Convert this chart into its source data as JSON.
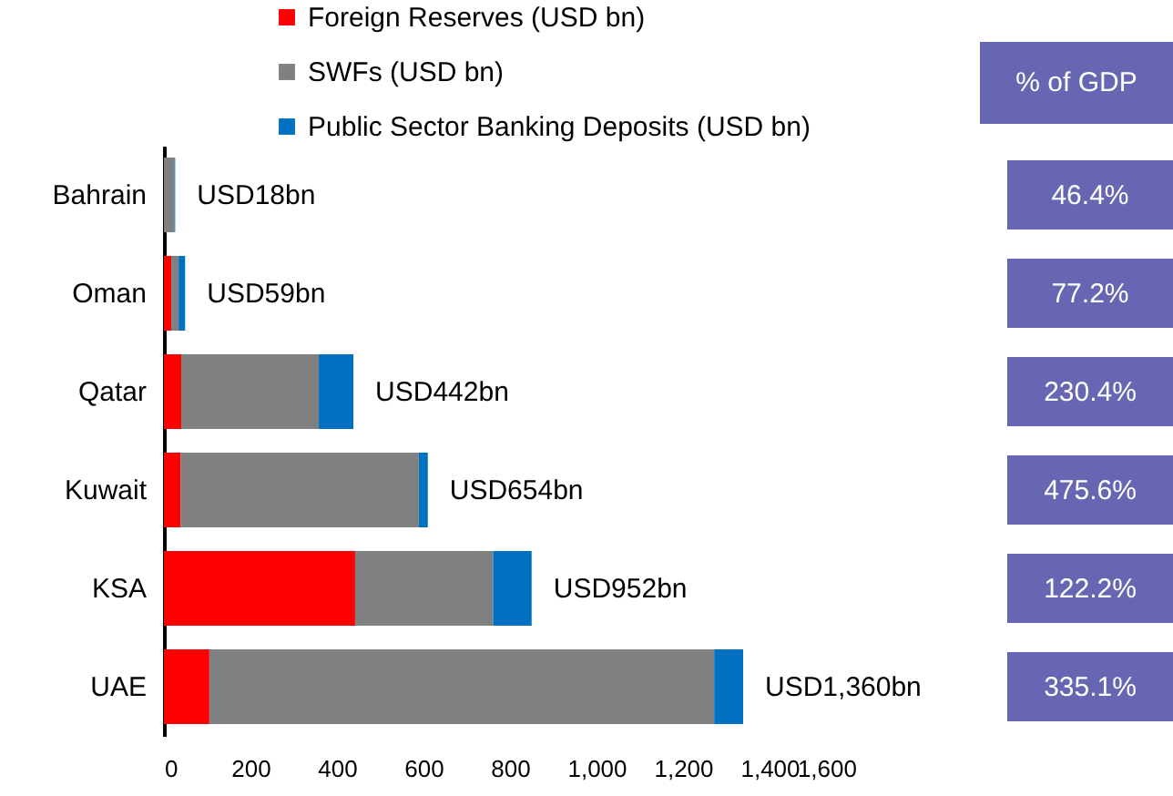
{
  "chart_data": {
    "type": "bar",
    "orientation": "horizontal",
    "stacked": true,
    "categories": [
      "Bahrain",
      "Oman",
      "Qatar",
      "Kuwait",
      "KSA",
      "UAE"
    ],
    "series": [
      {
        "name": "Foreign Reserves (USD bn)",
        "color": "#ff0000",
        "values": [
          0,
          17,
          40,
          39,
          442,
          105
        ]
      },
      {
        "name": "SWFs (USD bn)",
        "color": "#808080",
        "values": [
          24,
          17,
          318,
          550,
          319,
          1167
        ]
      },
      {
        "name": "Public Sector Banking Deposits (USD bn)",
        "color": "#0070c0",
        "values": [
          2,
          15,
          80,
          21,
          89,
          67
        ]
      }
    ],
    "xlim": [
      0,
      1600
    ],
    "xticks": [
      0,
      200,
      400,
      600,
      800,
      {
        "value": 1000,
        "label": "1,000"
      },
      {
        "value": 1200,
        "label": "1,200"
      },
      {
        "value": 1400,
        "label": "1,400"
      },
      {
        "value": 1600,
        "label": "1,600"
      }
    ],
    "totals": [
      "USD18bn",
      "USD59bn",
      "USD442bn",
      "USD654bn",
      "USD952bn",
      "USD1,360bn"
    ],
    "annotations": [
      "% of GDP",
      "46.4%",
      "77.2%",
      "230.4%",
      "475.6%",
      "122.2%",
      "335.1%"
    ],
    "legend": "top",
    "grid": false
  }
}
